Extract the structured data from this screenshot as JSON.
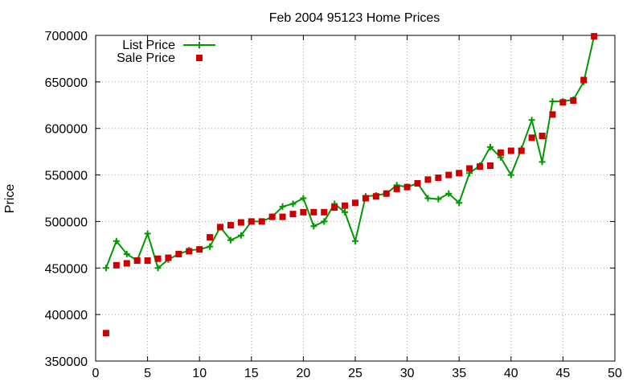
{
  "chart_data": {
    "type": "line",
    "title": "Feb 2004 95123 Home Prices",
    "xlabel": "",
    "ylabel": "Price",
    "xlim": [
      0,
      50
    ],
    "ylim": [
      350000,
      700000
    ],
    "xticks": [
      0,
      5,
      10,
      15,
      20,
      25,
      30,
      35,
      40,
      45,
      50
    ],
    "yticks": [
      350000,
      400000,
      450000,
      500000,
      550000,
      600000,
      650000,
      700000
    ],
    "grid": true,
    "legend_position": "top-left",
    "x": [
      1,
      2,
      3,
      4,
      5,
      6,
      7,
      8,
      9,
      10,
      11,
      12,
      13,
      14,
      15,
      16,
      17,
      18,
      19,
      20,
      21,
      22,
      23,
      24,
      25,
      26,
      27,
      28,
      29,
      30,
      31,
      32,
      33,
      34,
      35,
      36,
      37,
      38,
      39,
      40,
      41,
      42,
      43,
      44,
      45,
      46,
      47,
      48
    ],
    "series": [
      {
        "name": "List Price",
        "style": "line-cross",
        "color": "#009900",
        "values": [
          450000,
          479000,
          465000,
          458000,
          487000,
          450000,
          459000,
          465000,
          469000,
          470000,
          473000,
          494000,
          480000,
          485000,
          500000,
          500000,
          505000,
          516000,
          519000,
          525000,
          495000,
          500000,
          519000,
          510000,
          479000,
          527000,
          528000,
          530000,
          539000,
          537000,
          541000,
          525000,
          524000,
          530000,
          520000,
          552000,
          560000,
          580000,
          569000,
          550000,
          578000,
          609000,
          564000,
          629000,
          629000,
          631000,
          650000,
          699000
        ]
      },
      {
        "name": "Sale Price",
        "style": "square",
        "color": "#cc0000",
        "values": [
          380000,
          453000,
          455000,
          458000,
          458000,
          460000,
          461000,
          465000,
          468000,
          470000,
          483000,
          494000,
          496000,
          499000,
          500000,
          500000,
          505000,
          505000,
          508000,
          510000,
          510000,
          510000,
          515000,
          517000,
          520000,
          525000,
          527000,
          530000,
          535000,
          537000,
          541000,
          545000,
          547000,
          550000,
          552000,
          557000,
          559000,
          560000,
          574000,
          576000,
          576000,
          590000,
          592000,
          615000,
          628000,
          630000,
          652000,
          699000
        ]
      }
    ]
  }
}
